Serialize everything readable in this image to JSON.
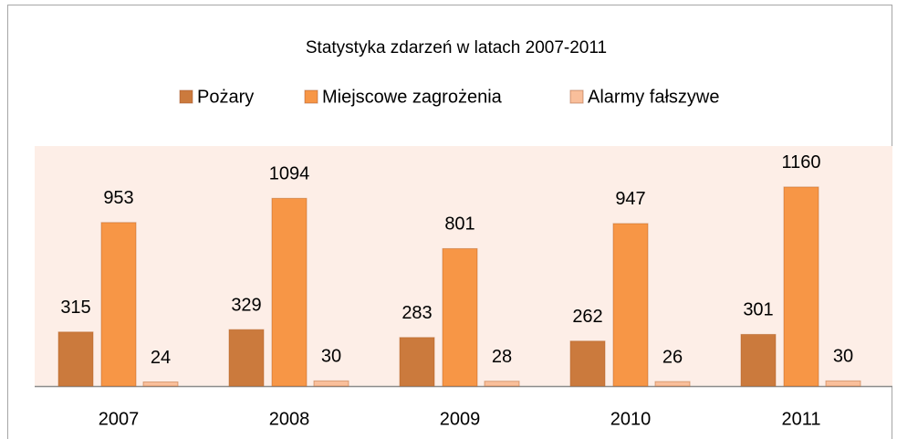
{
  "chart_data": {
    "type": "bar",
    "title": "Statystyka zdarzeń w latach 2007-2011",
    "categories": [
      "2007",
      "2008",
      "2009",
      "2010",
      "2011"
    ],
    "series": [
      {
        "name": "Pożary",
        "color": "#cb7a3d",
        "values": [
          315,
          329,
          283,
          262,
          301
        ]
      },
      {
        "name": "Miejscowe zagrożenia",
        "color": "#f79646",
        "values": [
          953,
          1094,
          801,
          947,
          1160
        ]
      },
      {
        "name": "Alarmy fałszywe",
        "color": "#f9bf9b",
        "values": [
          24,
          30,
          28,
          26,
          30
        ]
      }
    ],
    "legend": "top"
  }
}
